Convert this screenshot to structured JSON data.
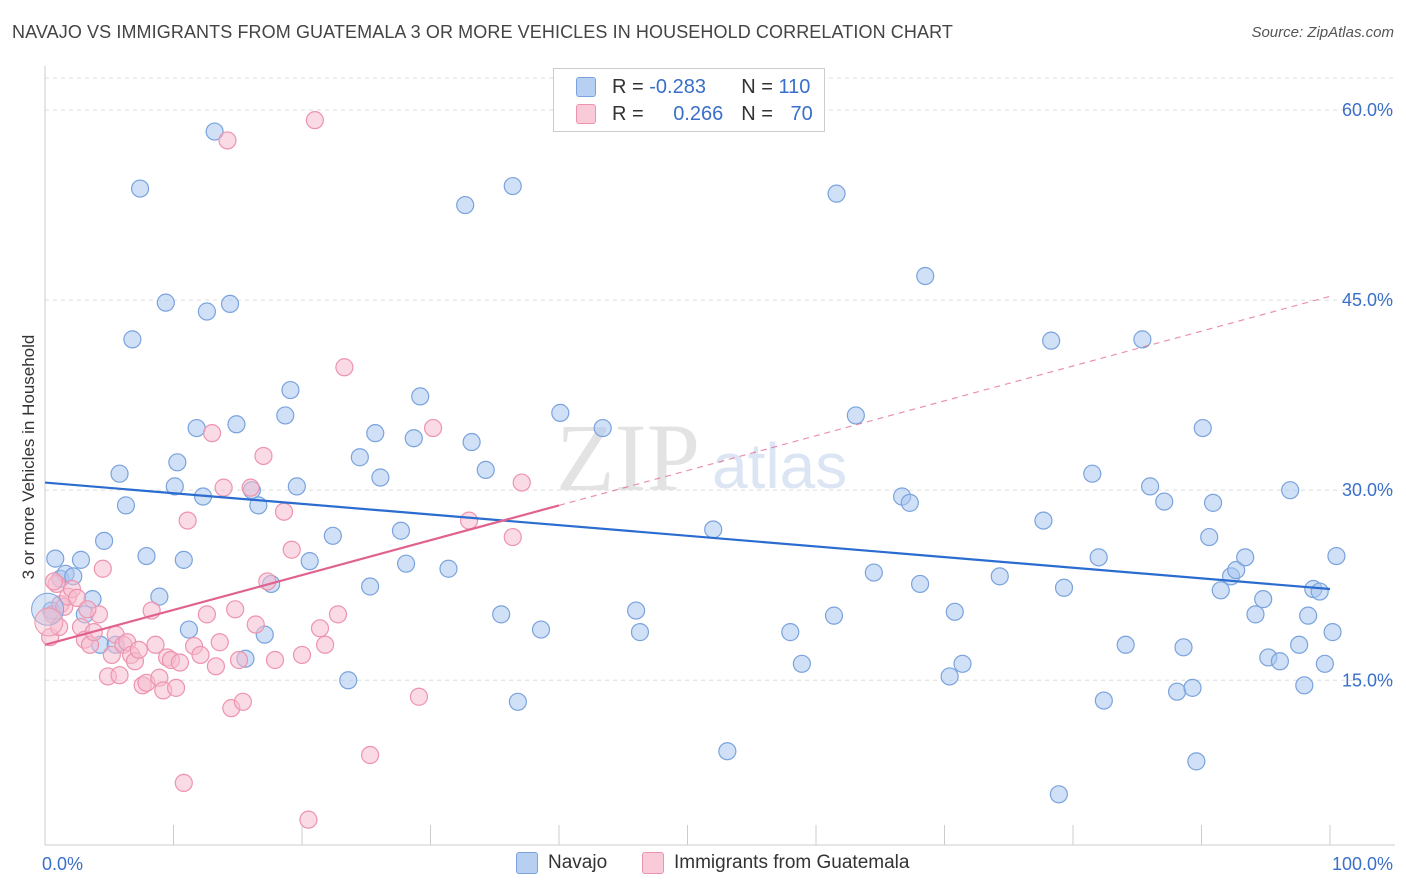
{
  "header": {
    "title": "NAVAJO VS IMMIGRANTS FROM GUATEMALA 3 OR MORE VEHICLES IN HOUSEHOLD CORRELATION CHART",
    "source": "Source: ZipAtlas.com"
  },
  "watermark": {
    "zip": "ZIP",
    "atlas": "atlas"
  },
  "legend": {
    "navajo": {
      "r_label": "R = ",
      "r_value": "-0.283",
      "n_label": "N = ",
      "n_value": "110"
    },
    "guatemala": {
      "r_label": "R = ",
      "r_value": "0.266",
      "n_label": "N = ",
      "n_value": "70"
    }
  },
  "colors": {
    "navajo_fill": "#a9c6ee",
    "navajo_stroke": "#7aa3dd",
    "navajo_line": "#2a6ccf",
    "guatemala_fill": "#f6bccd",
    "guatemala_stroke": "#ee93ae",
    "guatemala_line": "#e0628e",
    "tick_text": "#3a6fc9",
    "grid": "#dddddd"
  },
  "chart_data": {
    "type": "scatter",
    "title": "NAVAJO VS IMMIGRANTS FROM GUATEMALA 3 OR MORE VEHICLES IN HOUSEHOLD CORRELATION CHART",
    "xlabel": "",
    "ylabel": "3 or more Vehicles in Household",
    "xlim": [
      0,
      100
    ],
    "ylim": [
      2,
      63
    ],
    "x_tick_labels": {
      "left": "0.0%",
      "right": "100.0%"
    },
    "y_ticks": [
      {
        "value": 15,
        "label": "15.0%"
      },
      {
        "value": 30,
        "label": "30.0%"
      },
      {
        "value": 45,
        "label": "45.0%"
      },
      {
        "value": 60,
        "label": "60.0%"
      }
    ],
    "grid": true,
    "legend_position": "top-center",
    "series": [
      {
        "name": "Navajo",
        "color": "#a9c6ee",
        "trend": {
          "x": [
            0,
            100
          ],
          "y": [
            30.6,
            22.2
          ],
          "style": "solid"
        },
        "points": [
          [
            0.5,
            20.5
          ],
          [
            0.8,
            24.6
          ],
          [
            1.2,
            23.0
          ],
          [
            1.6,
            23.4
          ],
          [
            2.2,
            23.2
          ],
          [
            2.8,
            24.5
          ],
          [
            3.1,
            20.2
          ],
          [
            3.7,
            21.4
          ],
          [
            4.3,
            17.8
          ],
          [
            4.6,
            26.0
          ],
          [
            5.5,
            17.8
          ],
          [
            5.8,
            31.3
          ],
          [
            6.3,
            28.8
          ],
          [
            6.8,
            41.9
          ],
          [
            7.4,
            53.8
          ],
          [
            7.9,
            24.8
          ],
          [
            8.9,
            21.6
          ],
          [
            9.4,
            44.8
          ],
          [
            10.1,
            30.3
          ],
          [
            10.3,
            32.2
          ],
          [
            10.8,
            24.5
          ],
          [
            11.2,
            19.0
          ],
          [
            11.8,
            34.9
          ],
          [
            12.3,
            29.5
          ],
          [
            12.6,
            44.1
          ],
          [
            13.2,
            58.3
          ],
          [
            14.4,
            44.7
          ],
          [
            14.9,
            35.2
          ],
          [
            15.6,
            16.7
          ],
          [
            16.1,
            30.0
          ],
          [
            16.6,
            28.8
          ],
          [
            17.1,
            18.6
          ],
          [
            17.6,
            22.6
          ],
          [
            18.7,
            35.9
          ],
          [
            19.1,
            37.9
          ],
          [
            19.6,
            30.3
          ],
          [
            20.6,
            24.4
          ],
          [
            22.4,
            26.4
          ],
          [
            23.6,
            15.0
          ],
          [
            24.5,
            32.6
          ],
          [
            25.3,
            22.4
          ],
          [
            25.7,
            34.5
          ],
          [
            26.1,
            31.0
          ],
          [
            27.7,
            26.8
          ],
          [
            28.1,
            24.2
          ],
          [
            28.7,
            34.1
          ],
          [
            29.2,
            37.4
          ],
          [
            31.4,
            23.8
          ],
          [
            32.7,
            52.5
          ],
          [
            33.2,
            33.8
          ],
          [
            34.3,
            31.6
          ],
          [
            35.5,
            20.2
          ],
          [
            36.4,
            54.0
          ],
          [
            36.8,
            13.3
          ],
          [
            38.6,
            19.0
          ],
          [
            40.1,
            36.1
          ],
          [
            43.4,
            34.9
          ],
          [
            46.0,
            20.5
          ],
          [
            46.3,
            18.8
          ],
          [
            52.0,
            26.9
          ],
          [
            53.1,
            9.4
          ],
          [
            58.0,
            18.8
          ],
          [
            58.9,
            16.3
          ],
          [
            61.4,
            20.1
          ],
          [
            61.6,
            53.4
          ],
          [
            63.1,
            35.9
          ],
          [
            64.5,
            23.5
          ],
          [
            66.7,
            29.5
          ],
          [
            67.3,
            29.0
          ],
          [
            68.1,
            22.6
          ],
          [
            68.5,
            46.9
          ],
          [
            70.4,
            15.3
          ],
          [
            70.8,
            20.4
          ],
          [
            71.4,
            16.3
          ],
          [
            74.3,
            23.2
          ],
          [
            77.7,
            27.6
          ],
          [
            78.3,
            41.8
          ],
          [
            78.9,
            6.0
          ],
          [
            79.3,
            22.3
          ],
          [
            81.5,
            31.3
          ],
          [
            82.0,
            24.7
          ],
          [
            82.4,
            13.4
          ],
          [
            84.1,
            17.8
          ],
          [
            85.4,
            41.9
          ],
          [
            86.0,
            30.3
          ],
          [
            87.1,
            29.1
          ],
          [
            88.1,
            14.1
          ],
          [
            88.6,
            17.6
          ],
          [
            89.3,
            14.4
          ],
          [
            89.6,
            8.6
          ],
          [
            90.1,
            34.9
          ],
          [
            90.6,
            26.3
          ],
          [
            90.9,
            29.0
          ],
          [
            91.5,
            22.1
          ],
          [
            92.3,
            23.2
          ],
          [
            92.7,
            23.7
          ],
          [
            93.4,
            24.7
          ],
          [
            94.2,
            20.2
          ],
          [
            94.8,
            21.4
          ],
          [
            95.2,
            16.8
          ],
          [
            96.1,
            16.5
          ],
          [
            96.9,
            30.0
          ],
          [
            97.6,
            17.8
          ],
          [
            98.0,
            14.6
          ],
          [
            98.7,
            22.2
          ],
          [
            99.2,
            22.0
          ],
          [
            99.6,
            16.3
          ],
          [
            100.2,
            18.8
          ],
          [
            100.5,
            24.8
          ],
          [
            98.3,
            20.1
          ]
        ]
      },
      {
        "name": "Immigrants from Guatemala",
        "color": "#f6bccd",
        "trend": {
          "x": [
            0,
            40
          ],
          "y": [
            17.8,
            28.8
          ],
          "style": "solid",
          "extended_x": [
            40,
            100
          ],
          "extended_y": [
            28.8,
            45.3
          ],
          "extended_style": "dashed"
        },
        "points": [
          [
            0.4,
            18.4
          ],
          [
            0.6,
            20.2
          ],
          [
            0.9,
            22.6
          ],
          [
            1.2,
            21.0
          ],
          [
            1.5,
            20.8
          ],
          [
            1.8,
            21.6
          ],
          [
            2.1,
            22.2
          ],
          [
            2.5,
            21.5
          ],
          [
            2.8,
            19.2
          ],
          [
            3.1,
            18.2
          ],
          [
            3.5,
            17.8
          ],
          [
            3.8,
            18.8
          ],
          [
            4.2,
            20.2
          ],
          [
            4.5,
            23.8
          ],
          [
            4.9,
            15.3
          ],
          [
            5.2,
            17.0
          ],
          [
            5.5,
            18.6
          ],
          [
            5.8,
            15.4
          ],
          [
            6.1,
            17.8
          ],
          [
            6.4,
            18.0
          ],
          [
            6.7,
            17.0
          ],
          [
            7.0,
            16.5
          ],
          [
            7.3,
            17.4
          ],
          [
            7.6,
            14.6
          ],
          [
            7.9,
            14.8
          ],
          [
            8.3,
            20.5
          ],
          [
            8.6,
            17.8
          ],
          [
            8.9,
            15.2
          ],
          [
            9.2,
            14.2
          ],
          [
            9.5,
            16.8
          ],
          [
            9.8,
            16.6
          ],
          [
            10.2,
            14.4
          ],
          [
            10.5,
            16.4
          ],
          [
            10.8,
            6.9
          ],
          [
            11.1,
            27.6
          ],
          [
            11.6,
            17.7
          ],
          [
            12.1,
            17.0
          ],
          [
            12.6,
            20.2
          ],
          [
            13.0,
            34.5
          ],
          [
            13.3,
            16.1
          ],
          [
            13.6,
            18.0
          ],
          [
            13.9,
            30.2
          ],
          [
            14.2,
            57.6
          ],
          [
            14.5,
            12.8
          ],
          [
            14.8,
            20.6
          ],
          [
            15.1,
            16.6
          ],
          [
            15.4,
            13.3
          ],
          [
            16.0,
            30.2
          ],
          [
            16.4,
            19.4
          ],
          [
            17.0,
            32.7
          ],
          [
            17.3,
            22.8
          ],
          [
            17.9,
            16.6
          ],
          [
            18.6,
            28.3
          ],
          [
            19.2,
            25.3
          ],
          [
            20.0,
            17.0
          ],
          [
            20.5,
            4.0
          ],
          [
            21.0,
            59.2
          ],
          [
            21.4,
            19.1
          ],
          [
            21.8,
            17.8
          ],
          [
            22.8,
            20.2
          ],
          [
            23.3,
            39.7
          ],
          [
            25.3,
            9.1
          ],
          [
            29.1,
            13.7
          ],
          [
            30.2,
            34.9
          ],
          [
            33.0,
            27.6
          ],
          [
            36.4,
            26.3
          ],
          [
            37.1,
            30.6
          ],
          [
            0.7,
            22.8
          ],
          [
            1.1,
            19.2
          ],
          [
            3.3,
            20.6
          ]
        ]
      }
    ]
  },
  "bottom_legend": {
    "navajo": "Navajo",
    "guatemala": "Immigrants from Guatemala"
  }
}
